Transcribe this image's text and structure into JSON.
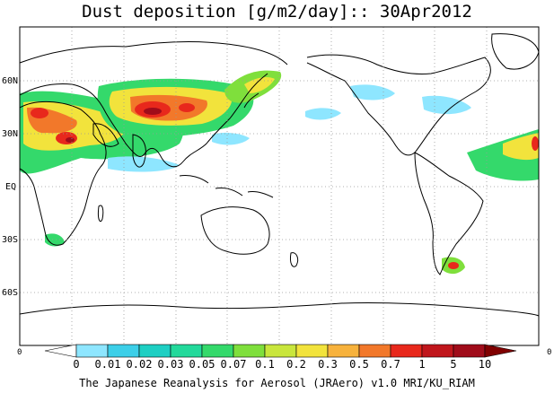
{
  "title": "Dust deposition [g/m2/day]:: 30Apr2012",
  "map": {
    "projection": "cylindrical",
    "center_longitude": "date line",
    "lat_labels": [
      "60N",
      "30N",
      "EQ",
      "30S",
      "60S"
    ],
    "left_edge_label": "0",
    "right_edge_label": "0"
  },
  "colorbar": {
    "labels": [
      "0",
      "0.01",
      "0.02",
      "0.03",
      "0.05",
      "0.07",
      "0.1",
      "0.2",
      "0.3",
      "0.5",
      "0.7",
      "1",
      "5",
      "10"
    ],
    "colors": [
      "#ffffff",
      "#8ee6ff",
      "#3ccfe8",
      "#1ecfc3",
      "#23d99b",
      "#34d96b",
      "#7fdf3c",
      "#c9e63c",
      "#f2e33c",
      "#f7b23c",
      "#f2782a",
      "#e8281c",
      "#c0161c",
      "#a00c1a",
      "#800000"
    ]
  },
  "credit": "The Japanese Reanalysis for Aerosol (JRAero) v1.0 MRI/KU_RIAM"
}
